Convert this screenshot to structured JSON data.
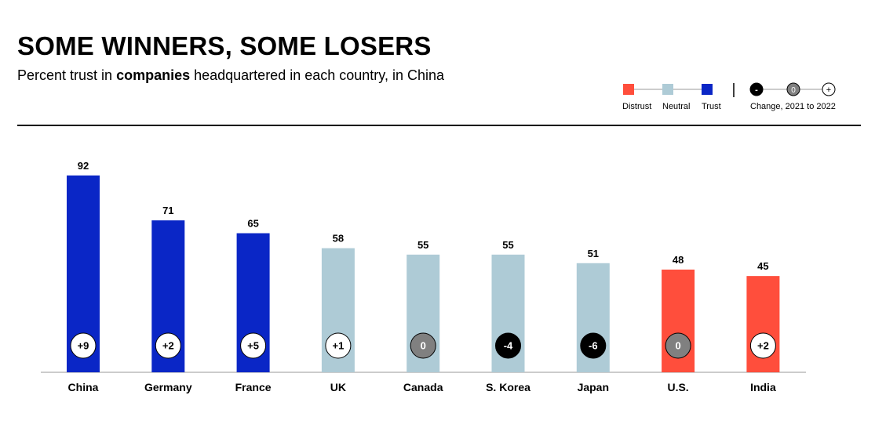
{
  "header": {
    "title": "SOME WINNERS, SOME LOSERS",
    "subtitle_pre": "Percent trust in ",
    "subtitle_bold": "companies",
    "subtitle_post": " headquartered in each country, in China"
  },
  "legend": {
    "categories": [
      {
        "label": "Distrust",
        "color": "#FF4E3C"
      },
      {
        "label": "Neutral",
        "color": "#AECBD6"
      },
      {
        "label": "Trust",
        "color": "#0A26C6"
      }
    ],
    "change_markers": [
      "-",
      "0",
      "+"
    ],
    "change_label": "Change, 2021 to 2022"
  },
  "colors": {
    "distrust": "#FF4E3C",
    "neutral": "#AECBD6",
    "trust": "#0A26C6",
    "change_negative": "#000000",
    "change_zero": "#808080",
    "change_positive": "#FFFFFF"
  },
  "chart_data": {
    "type": "bar",
    "categories": [
      "China",
      "Germany",
      "France",
      "UK",
      "Canada",
      "S. Korea",
      "Japan",
      "U.S.",
      "India"
    ],
    "values": [
      92,
      71,
      65,
      58,
      55,
      55,
      51,
      48,
      45
    ],
    "trust_level": [
      "trust",
      "trust",
      "trust",
      "neutral",
      "neutral",
      "neutral",
      "neutral",
      "distrust",
      "distrust"
    ],
    "change_2021_to_2022": [
      "+9",
      "+2",
      "+5",
      "+1",
      "0",
      "-4",
      "-6",
      "0",
      "+2"
    ],
    "title": "SOME WINNERS, SOME LOSERS",
    "xlabel": "",
    "ylabel": "",
    "ylim": [
      0,
      100
    ],
    "grid": false
  }
}
